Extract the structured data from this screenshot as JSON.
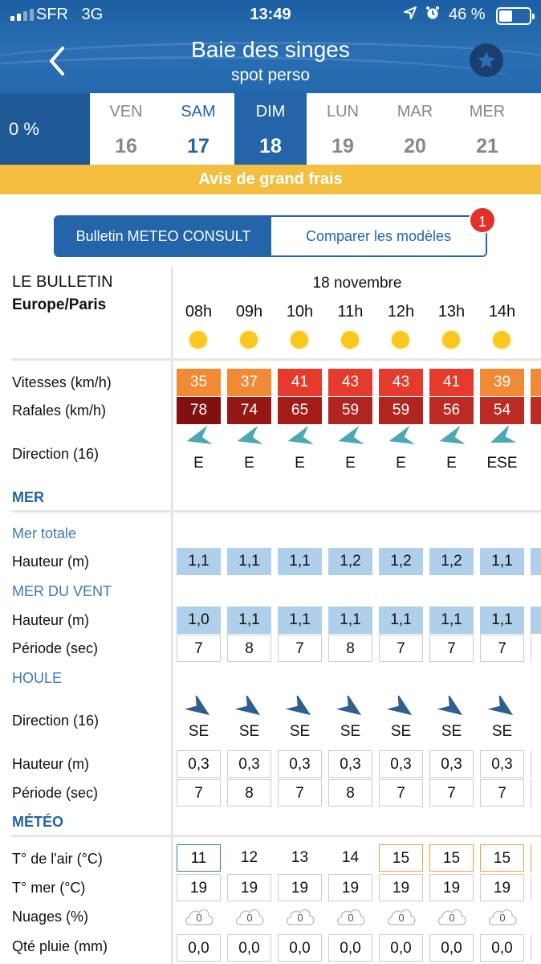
{
  "status_bar": {
    "carrier": "SFR",
    "network": "3G",
    "time": "13:49",
    "battery": "46 %"
  },
  "header": {
    "title": "Baie des singes",
    "subtitle": "spot perso"
  },
  "days_bar": {
    "percent": "0 %",
    "days": [
      {
        "name": "VEN",
        "date": "16"
      },
      {
        "name": "SAM",
        "date": "17"
      },
      {
        "name": "DIM",
        "date": "18"
      },
      {
        "name": "LUN",
        "date": "19"
      },
      {
        "name": "MAR",
        "date": "20"
      },
      {
        "name": "MER",
        "date": "21"
      }
    ],
    "selected": "DIM"
  },
  "alert_banner": "Avis de grand frais",
  "segmented": {
    "left": "Bulletin METEO CONSULT",
    "right": "Comparer les modèles",
    "badge": "1"
  },
  "bulletin": {
    "title": "LE BULLETIN",
    "timezone": "Europe/Paris",
    "date": "18 novembre",
    "hours": [
      "08h",
      "09h",
      "10h",
      "11h",
      "12h",
      "13h",
      "14h"
    ],
    "labels": {
      "wind_speed": "Vitesses (km/h)",
      "gusts": "Rafales (km/h)",
      "direction": "Direction (16)",
      "sea_section": "MER",
      "total_sea": "Mer totale",
      "height": "Hauteur (m)",
      "wind_sea": "MER DU VENT",
      "period": "Période (sec)",
      "swell": "HOULE",
      "weather_section": "MÉTÉO",
      "air_temp": "T° de l'air (°C)",
      "sea_temp": "T° mer (°C)",
      "clouds": "Nuages (%)",
      "rain": "Qté pluie (mm)"
    },
    "wind_speed": [
      "35",
      "37",
      "41",
      "43",
      "43",
      "41",
      "39"
    ],
    "wind_speed_colors": [
      "#f08a35",
      "#f08a35",
      "#e43b2c",
      "#e43b2c",
      "#e43b2c",
      "#e43b2c",
      "#f08a35"
    ],
    "gusts": [
      "78",
      "74",
      "65",
      "59",
      "59",
      "56",
      "54"
    ],
    "gusts_colors": [
      "#82100f",
      "#961815",
      "#a41c18",
      "#b22420",
      "#b22420",
      "#bb2a24",
      "#bd2b25"
    ],
    "wind_direction": [
      "E",
      "E",
      "E",
      "E",
      "E",
      "E",
      "ESE"
    ],
    "total_sea_height": [
      "1,1",
      "1,1",
      "1,1",
      "1,2",
      "1,2",
      "1,2",
      "1,1"
    ],
    "wind_sea_height": [
      "1,0",
      "1,1",
      "1,1",
      "1,1",
      "1,1",
      "1,1",
      "1,1"
    ],
    "wind_sea_period": [
      "7",
      "8",
      "7",
      "8",
      "7",
      "7",
      "7"
    ],
    "swell_direction": [
      "SE",
      "SE",
      "SE",
      "SE",
      "SE",
      "SE",
      "SE"
    ],
    "swell_height": [
      "0,3",
      "0,3",
      "0,3",
      "0,3",
      "0,3",
      "0,3",
      "0,3"
    ],
    "swell_period": [
      "7",
      "8",
      "7",
      "8",
      "7",
      "7",
      "7"
    ],
    "air_temp": [
      "11",
      "12",
      "13",
      "14",
      "15",
      "15",
      "15"
    ],
    "sea_temp": [
      "19",
      "19",
      "19",
      "19",
      "19",
      "19",
      "19"
    ],
    "clouds": [
      "0",
      "0",
      "0",
      "0",
      "0",
      "0",
      "0"
    ],
    "rain": [
      "0,0",
      "0,0",
      "0,0",
      "0,0",
      "0,0",
      "0,0",
      "0,0"
    ],
    "colors": {
      "accent": "#2464a8",
      "wind_arrow": "#4aa9b3",
      "swell_arrow": "#2e5f8f",
      "sea_fill": "#b0cfea",
      "alert": "#f4be41"
    }
  }
}
